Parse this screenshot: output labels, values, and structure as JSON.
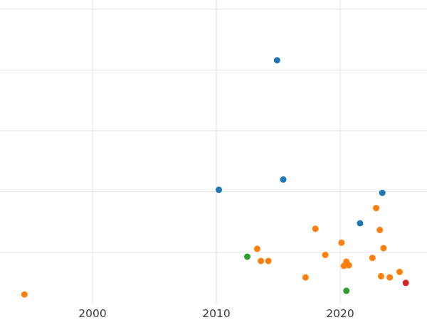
{
  "chart_data": {
    "type": "scatter",
    "title": "",
    "xlabel": "",
    "ylabel": "",
    "x_tick_labels": [
      "2000",
      "2010",
      "2020"
    ],
    "x_ticks": [
      2000,
      2010,
      2020
    ],
    "y_gridlines": [
      1,
      2,
      3,
      4,
      5
    ],
    "y_axis_labels_visible": false,
    "xlim": [
      1992.53,
      2027.01
    ],
    "ylim": [
      -0.11,
      5.15
    ],
    "grid": true,
    "legend": "none",
    "marker_radius": 4.5,
    "colors": {
      "background": "#ffffff",
      "grid": "#e3e3e3",
      "tick_label": "#3b3b3b"
    },
    "series": [
      {
        "name": "blue-series",
        "color": "#1f77b4",
        "points": [
          [
            2014.9,
            4.16
          ],
          [
            2015.4,
            2.2
          ],
          [
            2010.2,
            2.03
          ],
          [
            2023.4,
            1.98
          ],
          [
            2021.6,
            1.48
          ]
        ]
      },
      {
        "name": "orange-series",
        "color": "#ff7f0e",
        "points": [
          [
            1994.5,
            0.31
          ],
          [
            2022.9,
            1.73
          ],
          [
            2018.0,
            1.39
          ],
          [
            2023.2,
            1.37
          ],
          [
            2020.1,
            1.16
          ],
          [
            2023.5,
            1.07
          ],
          [
            2013.3,
            1.06
          ],
          [
            2018.8,
            0.96
          ],
          [
            2022.6,
            0.91
          ],
          [
            2013.6,
            0.86
          ],
          [
            2014.2,
            0.86
          ],
          [
            2020.5,
            0.85
          ],
          [
            2020.7,
            0.79
          ],
          [
            2020.3,
            0.78
          ],
          [
            2017.2,
            0.59
          ],
          [
            2023.3,
            0.61
          ],
          [
            2024.0,
            0.59
          ],
          [
            2024.8,
            0.68
          ]
        ]
      },
      {
        "name": "green-series",
        "color": "#2ca02c",
        "points": [
          [
            2012.5,
            0.93
          ],
          [
            2020.5,
            0.37
          ]
        ]
      },
      {
        "name": "red-series",
        "color": "#d62728",
        "points": [
          [
            2025.3,
            0.5
          ]
        ]
      }
    ]
  }
}
